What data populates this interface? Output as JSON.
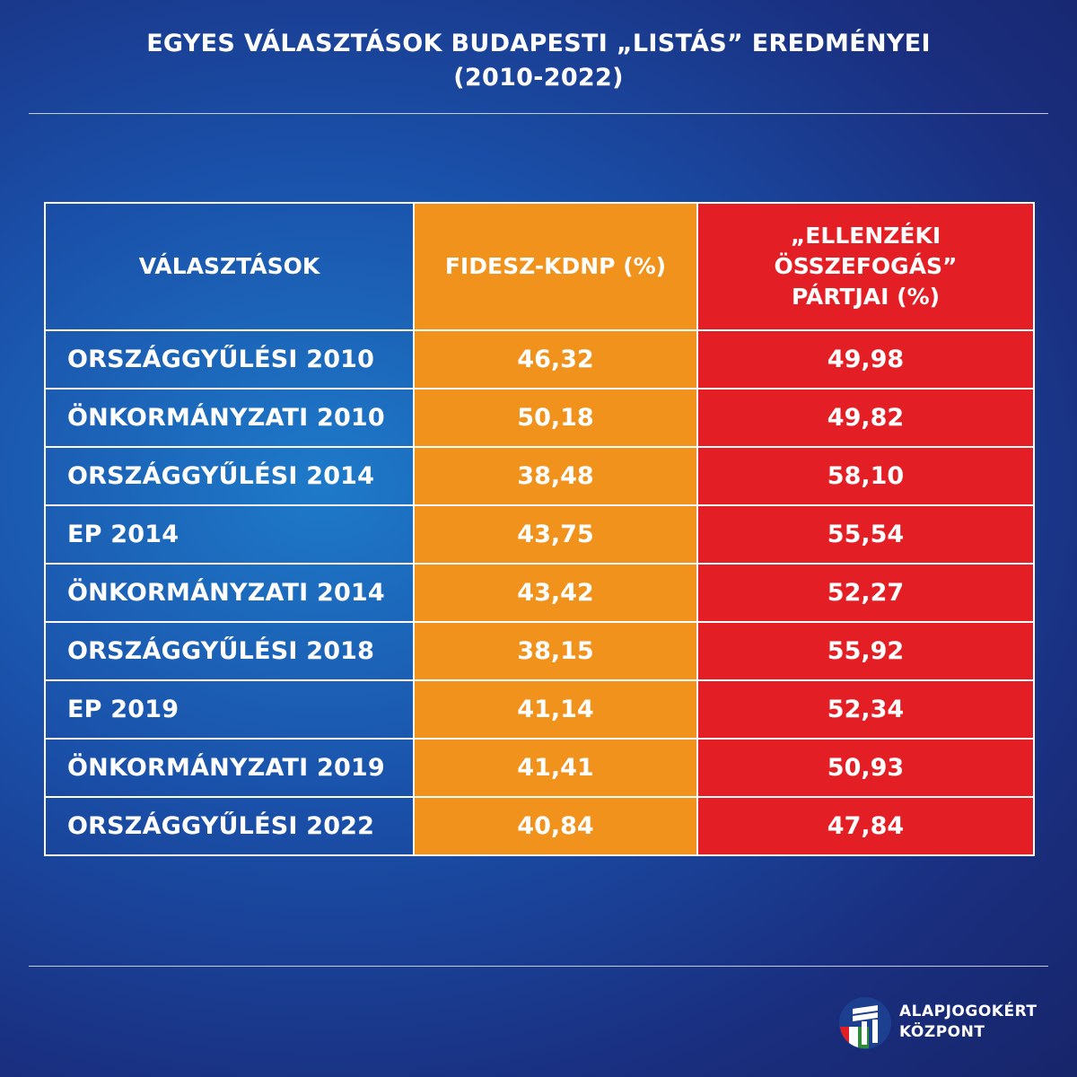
{
  "title": {
    "line1": "EGYES VÁLASZTÁSOK BUDAPESTI „LISTÁS” EREDMÉNYEI",
    "line2": "(2010-2022)"
  },
  "table": {
    "headers": {
      "elections": "VÁLASZTÁSOK",
      "fidesz": "FIDESZ-KDNP (%)",
      "opposition_line1": "„ELLENZÉKI",
      "opposition_line2": "ÖSSZEFOGÁS”",
      "opposition_line3": "PÁRTJAI (%)"
    },
    "rows": [
      {
        "election": "ORSZÁGGYŰLÉSI 2010",
        "fidesz": "46,32",
        "opposition": "49,98"
      },
      {
        "election": "ÖNKORMÁNYZATI 2010",
        "fidesz": "50,18",
        "opposition": "49,82"
      },
      {
        "election": "ORSZÁGGYŰLÉSI 2014",
        "fidesz": "38,48",
        "opposition": "58,10"
      },
      {
        "election": "EP 2014",
        "fidesz": "43,75",
        "opposition": "55,54"
      },
      {
        "election": "ÖNKORMÁNYZATI 2014",
        "fidesz": "43,42",
        "opposition": "52,27"
      },
      {
        "election": "ORSZÁGGYŰLÉSI 2018",
        "fidesz": "38,15",
        "opposition": "55,92"
      },
      {
        "election": "EP 2019",
        "fidesz": "41,14",
        "opposition": "52,34"
      },
      {
        "election": "ÖNKORMÁNYZATI 2019",
        "fidesz": "41,41",
        "opposition": "50,93"
      },
      {
        "election": "ORSZÁGGYŰLÉSI 2022",
        "fidesz": "40,84",
        "opposition": "47,84"
      }
    ]
  },
  "logo": {
    "line1": "ALAPJOGOKÉRT",
    "line2": "KÖZPONT",
    "icon": "alapjogokert-kozpont-logo-icon"
  },
  "colors": {
    "fidesz": "#f0921c",
    "opposition": "#e31e24",
    "background": "#1a4fa8"
  },
  "chart_data": {
    "type": "table",
    "title": "EGYES VÁLASZTÁSOK BUDAPESTI „LISTÁS” EREDMÉNYEI (2010-2022)",
    "columns": [
      "VÁLASZTÁSOK",
      "FIDESZ-KDNP (%)",
      "„ELLENZÉKI ÖSSZEFOGÁS” PÁRTJAI (%)"
    ],
    "categories": [
      "ORSZÁGGYŰLÉSI 2010",
      "ÖNKORMÁNYZATI 2010",
      "ORSZÁGGYŰLÉSI 2014",
      "EP 2014",
      "ÖNKORMÁNYZATI 2014",
      "ORSZÁGGYŰLÉSI 2018",
      "EP 2019",
      "ÖNKORMÁNYZATI 2019",
      "ORSZÁGGYŰLÉSI 2022"
    ],
    "series": [
      {
        "name": "FIDESZ-KDNP (%)",
        "values": [
          46.32,
          50.18,
          38.48,
          43.75,
          43.42,
          38.15,
          41.14,
          41.41,
          40.84
        ]
      },
      {
        "name": "„ELLENZÉKI ÖSSZEFOGÁS” PÁRTJAI (%)",
        "values": [
          49.98,
          49.82,
          58.1,
          55.54,
          52.27,
          55.92,
          52.34,
          50.93,
          47.84
        ]
      }
    ]
  }
}
